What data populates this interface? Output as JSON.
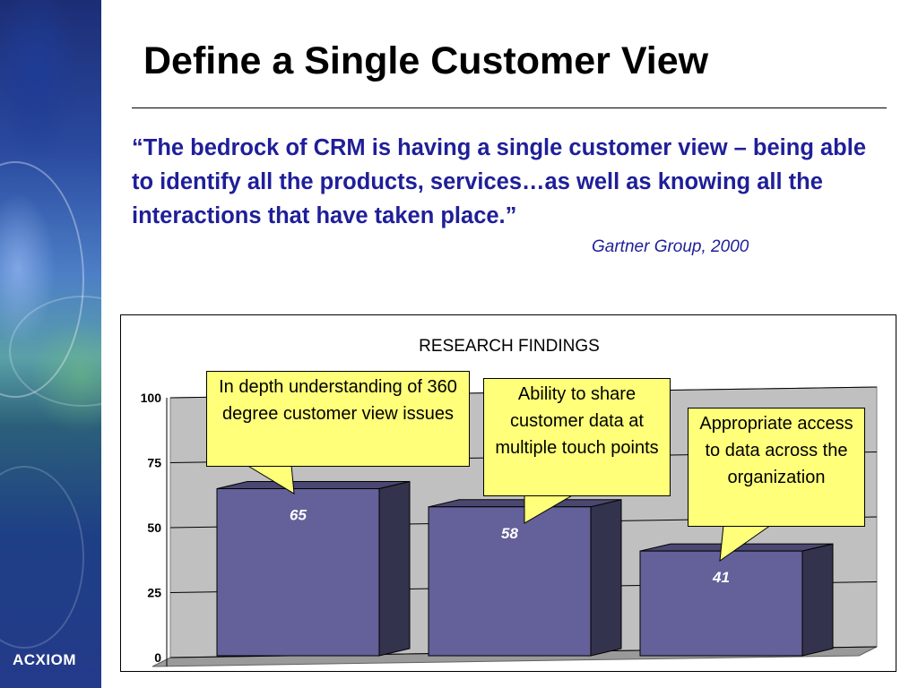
{
  "slide": {
    "title": "Define a Single Customer View",
    "quote": "“The bedrock of CRM is having a single customer view – being able to identify all the products, services…as well as knowing all the interactions that have taken place.”",
    "attribution": "Gartner Group, 2000",
    "logo": "ACXIOM"
  },
  "colors": {
    "bar_front": "#646099",
    "bar_side": "#33334d",
    "bar_top": "#4a4870",
    "callout_fill": "#ffff7a",
    "quote_text": "#1f1f99",
    "wall": "#c0c0c0"
  },
  "chart_data": {
    "type": "bar",
    "title": "RESEARCH FINDINGS",
    "xlabel": "",
    "ylabel": "",
    "ylim": [
      0,
      100
    ],
    "yticks": [
      "0",
      "25",
      "50",
      "75",
      "100"
    ],
    "grid": true,
    "values": [
      65,
      58,
      41
    ],
    "data_labels": [
      "65",
      "58",
      "41"
    ],
    "annotations": [
      "In depth understanding of 360 degree customer view issues",
      "Ability to share customer data at multiple touch points",
      "Appropriate access to data across the organization"
    ]
  }
}
